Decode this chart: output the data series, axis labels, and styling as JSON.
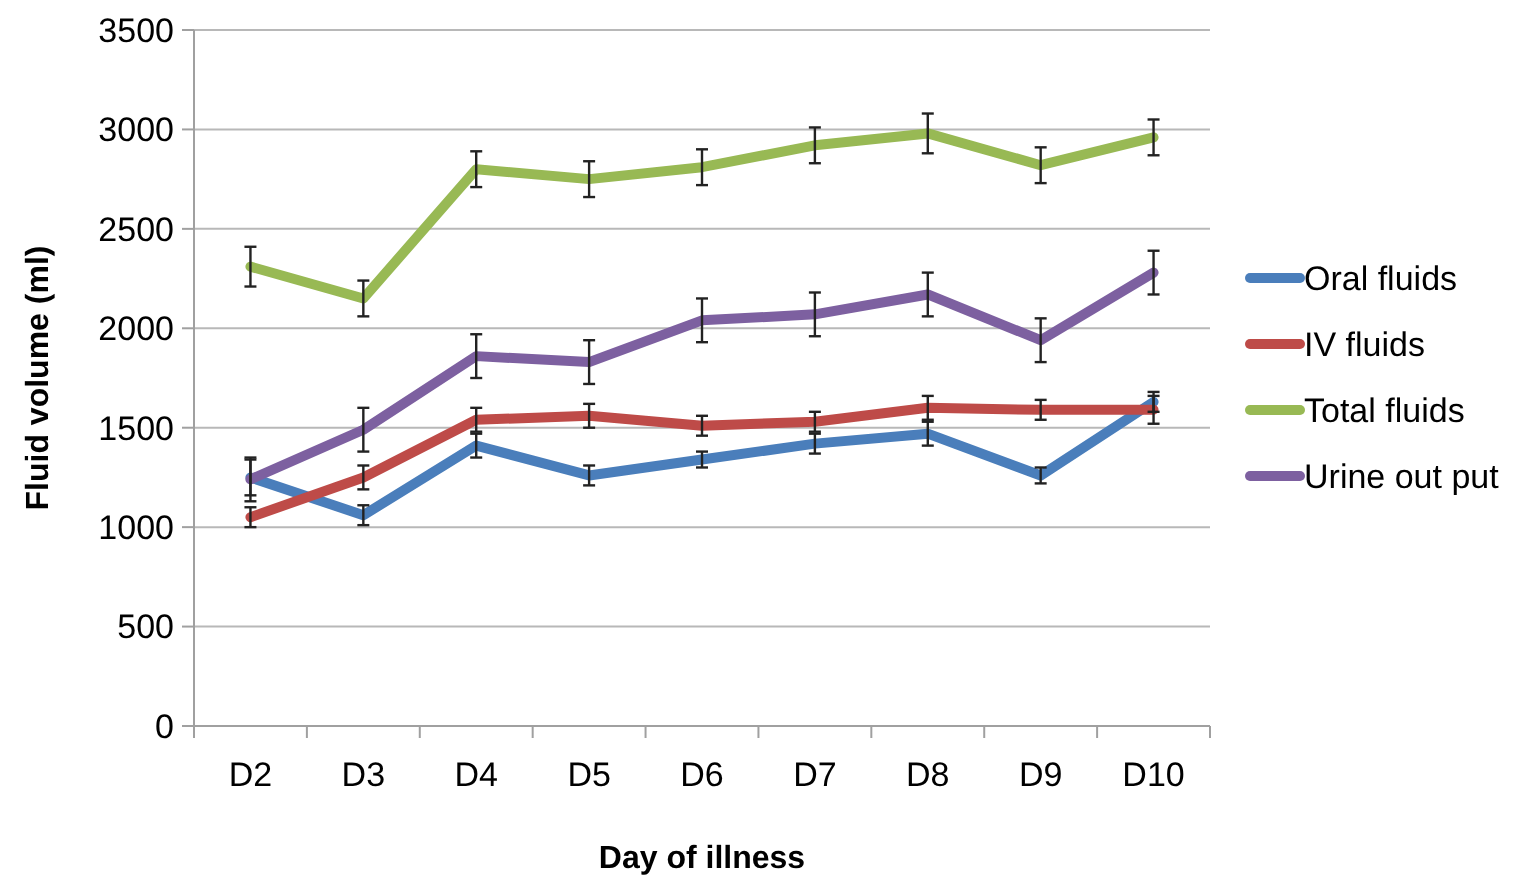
{
  "chart_data": {
    "type": "line",
    "xlabel": "Day of illness",
    "ylabel": "Fluid volume (ml)",
    "categories": [
      "D2",
      "D3",
      "D4",
      "D5",
      "D6",
      "D7",
      "D8",
      "D9",
      "D10"
    ],
    "series": [
      {
        "name": "Oral fluids",
        "color": "#4a7ebb",
        "values": [
          1250,
          1060,
          1410,
          1260,
          1340,
          1420,
          1470,
          1260,
          1630
        ],
        "errors": [
          90,
          50,
          60,
          50,
          40,
          50,
          60,
          40,
          50
        ]
      },
      {
        "name": "IV fluids",
        "color": "#be4b48",
        "values": [
          1050,
          1250,
          1540,
          1560,
          1510,
          1530,
          1600,
          1590,
          1590
        ],
        "errors": [
          50,
          60,
          60,
          60,
          50,
          50,
          60,
          50,
          70
        ]
      },
      {
        "name": "Total fluids",
        "color": "#98b954",
        "values": [
          2310,
          2150,
          2800,
          2750,
          2810,
          2920,
          2980,
          2820,
          2960
        ],
        "errors": [
          100,
          90,
          90,
          90,
          90,
          90,
          100,
          90,
          90
        ]
      },
      {
        "name": "Urine out put",
        "color": "#7d60a0",
        "values": [
          1240,
          1490,
          1860,
          1830,
          2040,
          2070,
          2170,
          1940,
          2280
        ],
        "errors": [
          110,
          110,
          110,
          110,
          110,
          110,
          110,
          110,
          110
        ]
      }
    ],
    "ylim": [
      0,
      3500
    ],
    "yticks": [
      0,
      500,
      1000,
      1500,
      2000,
      2500,
      3000,
      3500
    ],
    "grid": "y",
    "legend": "right",
    "marker": "none",
    "line_style": "solid"
  }
}
